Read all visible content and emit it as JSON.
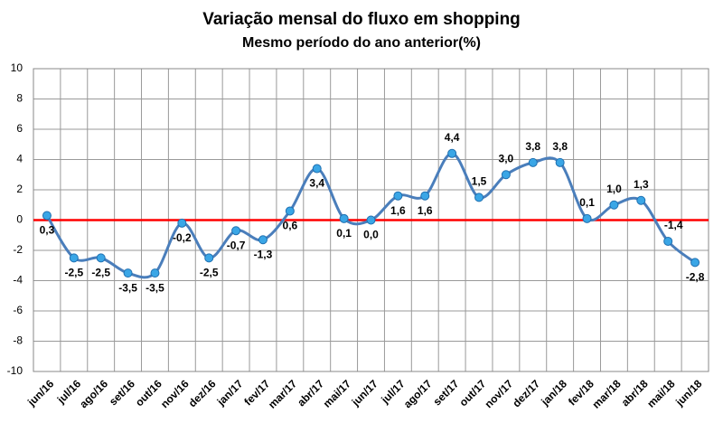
{
  "chart_data": {
    "type": "line",
    "title": "Variação mensal do fluxo em shopping",
    "subtitle": "Mesmo período do ano anterior(%)",
    "categories": [
      "jun/16",
      "jul/16",
      "ago/16",
      "set/16",
      "out/16",
      "nov/16",
      "dez/16",
      "jan/17",
      "fev/17",
      "mar/17",
      "abr/17",
      "mai/17",
      "jun/17",
      "jul/17",
      "ago/17",
      "set/17",
      "out/17",
      "nov/17",
      "dez/17",
      "jan/18",
      "fev/18",
      "mar/18",
      "abr/18",
      "mai/18",
      "jun/18"
    ],
    "series": [
      {
        "name": "Variação",
        "color": "#4a7ebb",
        "values": [
          0.3,
          -2.5,
          -2.5,
          -3.5,
          -3.5,
          -0.2,
          -2.5,
          -0.7,
          -1.3,
          0.6,
          3.4,
          0.1,
          0.0,
          1.6,
          1.6,
          4.4,
          1.5,
          3.0,
          3.8,
          3.8,
          0.1,
          1.0,
          1.3,
          -1.4,
          -2.8
        ],
        "value_labels": [
          "0,3",
          "-2,5",
          "-2,5",
          "-3,5",
          "-3,5",
          "-0,2",
          "-2,5",
          "-0,7",
          "-1,3",
          "0,6",
          "3,4",
          "0,1",
          "0,0",
          "1,6",
          "1,6",
          "4,4",
          "1,5",
          "3,0",
          "3,8",
          "3,8",
          "0,1",
          "1,0",
          "1,3",
          "-1,4",
          "-2,8"
        ]
      }
    ],
    "ylim": [
      -10,
      10
    ],
    "yticks": [
      -10,
      -8,
      -6,
      -4,
      -2,
      0,
      2,
      4,
      6,
      8,
      10
    ],
    "grid": true,
    "zero_line_color": "#ff0000",
    "marker_color": "#3aa6e6"
  }
}
